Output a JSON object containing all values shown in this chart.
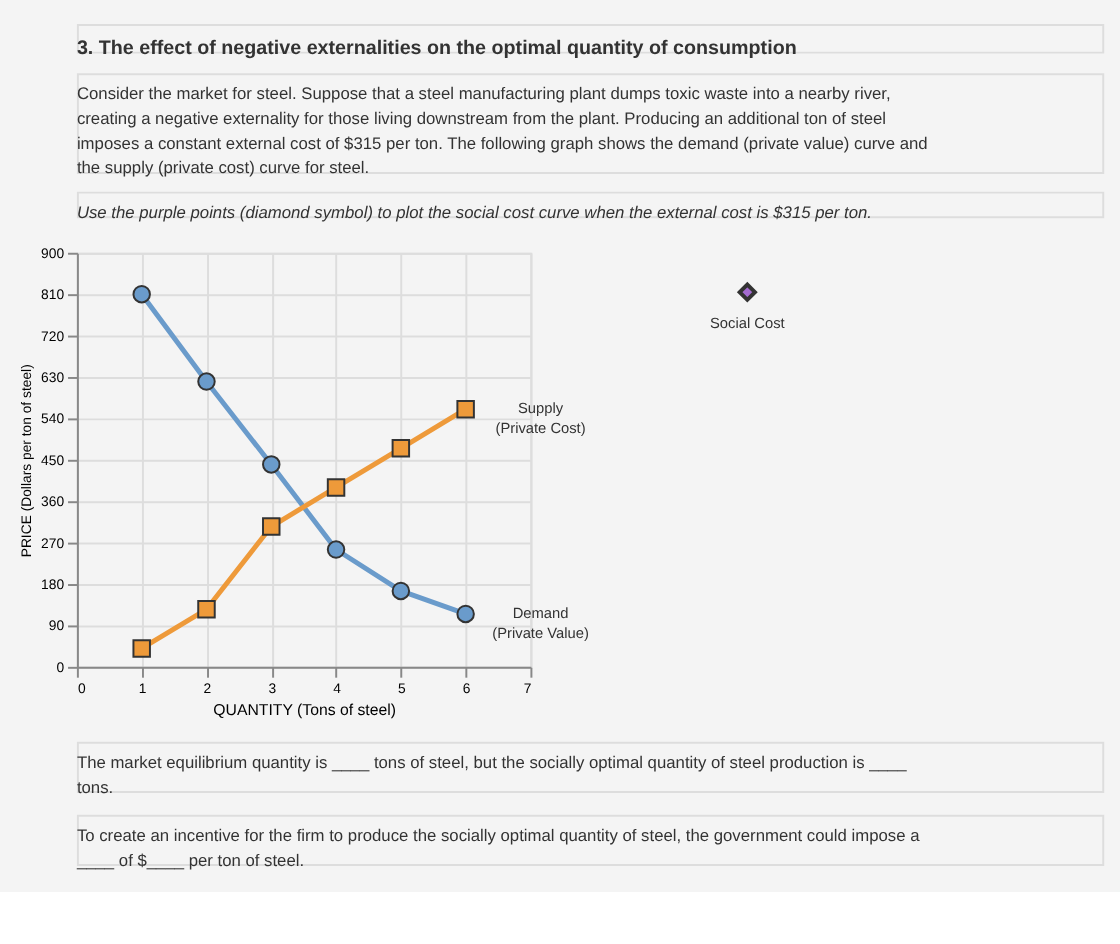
{
  "chart_data": {
    "type": "line",
    "title": "3. The effect of negative externalities on the optimal quantity of consumption",
    "subtitle": "Consider the market for steel. Suppose that a steel manufacturing plant dumps toxic waste into a nearby river, creating a negative externality for those living downstream from the plant. Producing an additional ton of steel imposes a constant external cost of $315 per ton. The following graph shows the demand (private value) curve and the supply (private cost) curve for steel.",
    "annotations": [
      "Use the purple points (diamond symbol) to plot the social cost curve when the external cost is $315 per ton.",
      "The market equilibrium quantity is ____ tons of steel, but the socially optimal quantity of steel production is ____ tons.",
      "To create an incentive for the firm to produce the socially optimal quantity of steel, the government could impose a ____ of $____ per ton of steel."
    ],
    "xlabel": "QUANTITY (Tons of steel)",
    "ylabel": "PRICE (Dollars per ton of steel)",
    "x": [
      1,
      2,
      3,
      4,
      5,
      6
    ],
    "series": [
      {
        "name": "Demand (Private Value)",
        "color": "#6a9bcb",
        "marker": "circle",
        "values": [
          810,
          620,
          440,
          255,
          165,
          115
        ]
      },
      {
        "name": "Supply (Private Cost)",
        "color": "#ee9a3a",
        "marker": "square",
        "values": [
          40,
          125,
          305,
          390,
          475,
          560
        ]
      },
      {
        "name": "Social Cost",
        "color": "#a46bd0",
        "marker": "diamond",
        "values": [
          null,
          null,
          null,
          null,
          null,
          null
        ]
      }
    ],
    "xlim": [
      0,
      7
    ],
    "xticks": [
      0,
      1,
      2,
      3,
      4,
      5,
      6,
      7
    ],
    "ylim": [
      0,
      900
    ],
    "yticks": [
      0,
      90,
      180,
      270,
      360,
      450,
      540,
      630,
      720,
      810,
      900
    ],
    "grid": true,
    "legend": "top right",
    "line_style": "solid"
  }
}
